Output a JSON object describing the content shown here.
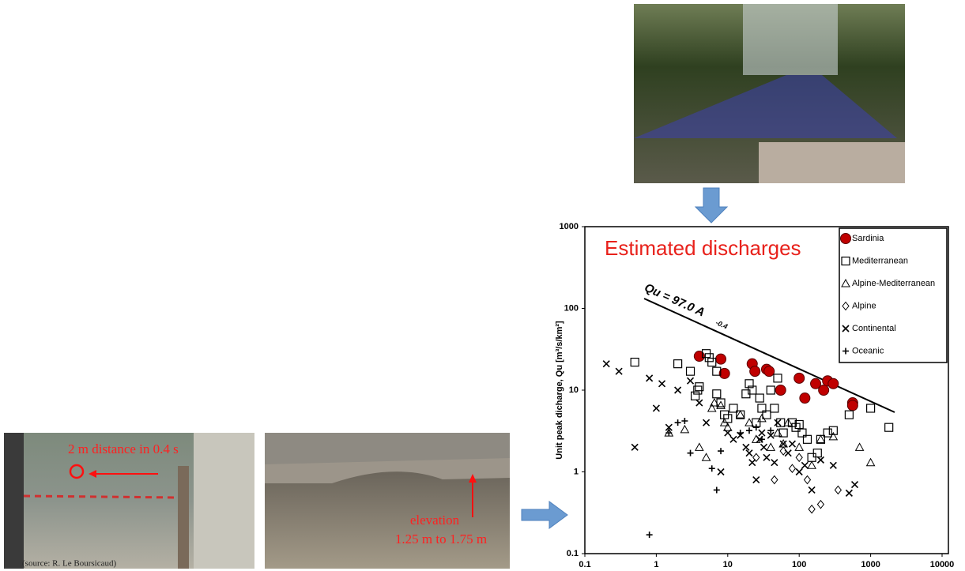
{
  "slide": {
    "photo1_caption": "2 m distance in 0.4 s",
    "photo1_source": "(source: R. Le Boursicaud)",
    "photo2_caption_1": "elevation",
    "photo2_caption_2": "1.25 m to 1.75 m"
  },
  "chart_data": {
    "type": "scatter",
    "title": "Estimated discharges",
    "title_color": "#e8211b",
    "y_label": "Unit peak dicharge, Qu [m³/s/km²]",
    "equation": "Qu = 97.0 A",
    "equation_exponent": "-0.4",
    "xlog": true,
    "ylog": true,
    "xlim": [
      0.1,
      10000
    ],
    "ylim": [
      0.1,
      1000
    ],
    "xticks": [
      0.1,
      1,
      10,
      100,
      1000,
      10000
    ],
    "yticks": [
      0.1,
      1,
      10,
      100,
      1000
    ],
    "legend": "upper right",
    "series": [
      {
        "name": "Sardinia",
        "marker": "circle",
        "color": "#c00000",
        "x": [
          4,
          8,
          9,
          22,
          24,
          35,
          38,
          55,
          100,
          120,
          170,
          220,
          250,
          300,
          560,
          560
        ],
        "values": [
          26,
          24,
          16,
          21,
          17,
          18,
          17,
          10,
          14,
          8,
          12,
          10,
          13,
          12,
          7,
          6.5
        ]
      },
      {
        "name": "Mediterranean",
        "marker": "square",
        "color": "#000000",
        "x": [
          0.5,
          2,
          3,
          3.5,
          3.8,
          4,
          5,
          5.5,
          6,
          7,
          7,
          8,
          9,
          10,
          12,
          15,
          18,
          20,
          22,
          25,
          28,
          30,
          35,
          40,
          45,
          50,
          55,
          60,
          80,
          90,
          100,
          110,
          130,
          150,
          180,
          200,
          250,
          300,
          500,
          1000,
          1800
        ],
        "values": [
          22,
          21,
          17,
          8.5,
          10,
          11,
          28,
          25,
          22,
          9,
          17,
          7,
          5,
          4.5,
          6,
          5,
          9,
          12,
          10,
          4,
          8,
          6,
          5,
          10,
          6,
          14,
          4,
          3,
          4,
          3.5,
          3.8,
          3,
          2.5,
          1.5,
          1.7,
          2.5,
          3,
          3.2,
          5,
          6,
          3.5
        ]
      },
      {
        "name": "Alpine-Mediterranean",
        "marker": "triangle",
        "color": "#000000",
        "x": [
          1.5,
          2.5,
          4,
          5,
          6,
          6.5,
          8,
          9,
          10,
          15,
          20,
          25,
          30,
          40,
          50,
          60,
          70,
          100,
          150,
          200,
          300,
          700,
          1000
        ],
        "values": [
          3,
          3.3,
          2,
          1.5,
          6,
          7,
          6.5,
          4,
          3.5,
          5,
          4,
          2.5,
          4.5,
          2,
          3,
          2.2,
          4,
          2,
          1.2,
          2.5,
          2.7,
          2,
          1.3
        ]
      },
      {
        "name": "Alpine",
        "marker": "diamond",
        "color": "#000000",
        "x": [
          25,
          45,
          60,
          80,
          100,
          130,
          150,
          200,
          350
        ],
        "values": [
          1.5,
          0.8,
          1.8,
          1.1,
          1.5,
          0.8,
          0.35,
          0.4,
          0.6
        ]
      },
      {
        "name": "Continental",
        "marker": "cross",
        "color": "#000000",
        "x": [
          0.2,
          0.3,
          0.5,
          0.8,
          1,
          1.2,
          1.5,
          2,
          3,
          4,
          5,
          8,
          10,
          12,
          15,
          18,
          20,
          22,
          25,
          28,
          30,
          32,
          35,
          40,
          45,
          50,
          60,
          70,
          80,
          100,
          120,
          150,
          200,
          300,
          500,
          600
        ],
        "values": [
          21,
          17,
          2,
          14,
          6,
          12,
          3.5,
          10,
          13,
          7,
          4,
          1,
          3,
          2.5,
          2.8,
          2,
          1.7,
          1.3,
          0.8,
          2.5,
          3,
          2,
          1.5,
          2.8,
          1.3,
          4,
          2.2,
          1.7,
          2.2,
          1.0,
          1.2,
          0.6,
          1.4,
          1.2,
          0.55,
          0.7
        ]
      },
      {
        "name": "Oceanic",
        "marker": "plus",
        "color": "#000000",
        "x": [
          0.8,
          1.5,
          2,
          2.5,
          3,
          6,
          7,
          8,
          15,
          20,
          25,
          30,
          40
        ],
        "values": [
          0.17,
          3,
          4,
          4.2,
          1.7,
          1.1,
          0.6,
          1.8,
          3,
          3.2,
          3.5,
          2.5,
          3.2
        ]
      }
    ]
  }
}
